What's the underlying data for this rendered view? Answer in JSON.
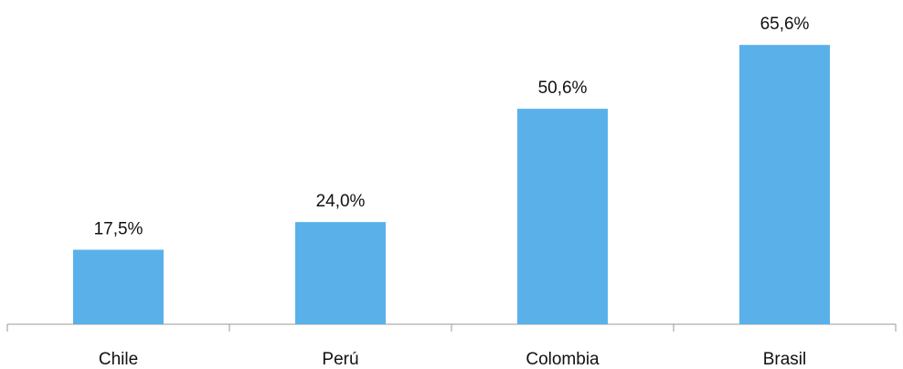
{
  "chart_data": {
    "type": "bar",
    "categories": [
      "Chile",
      "Perú",
      "Colombia",
      "Brasil"
    ],
    "values": [
      17.5,
      24.0,
      50.6,
      65.6
    ],
    "value_labels": [
      "17,5%",
      "24,0%",
      "50,6%",
      "65,6%"
    ],
    "ylim": [
      0,
      70
    ],
    "grid": false,
    "legend": "none",
    "colors": {
      "bar": "#5AB1EA",
      "axis": "#999999",
      "text": "#111111"
    }
  }
}
